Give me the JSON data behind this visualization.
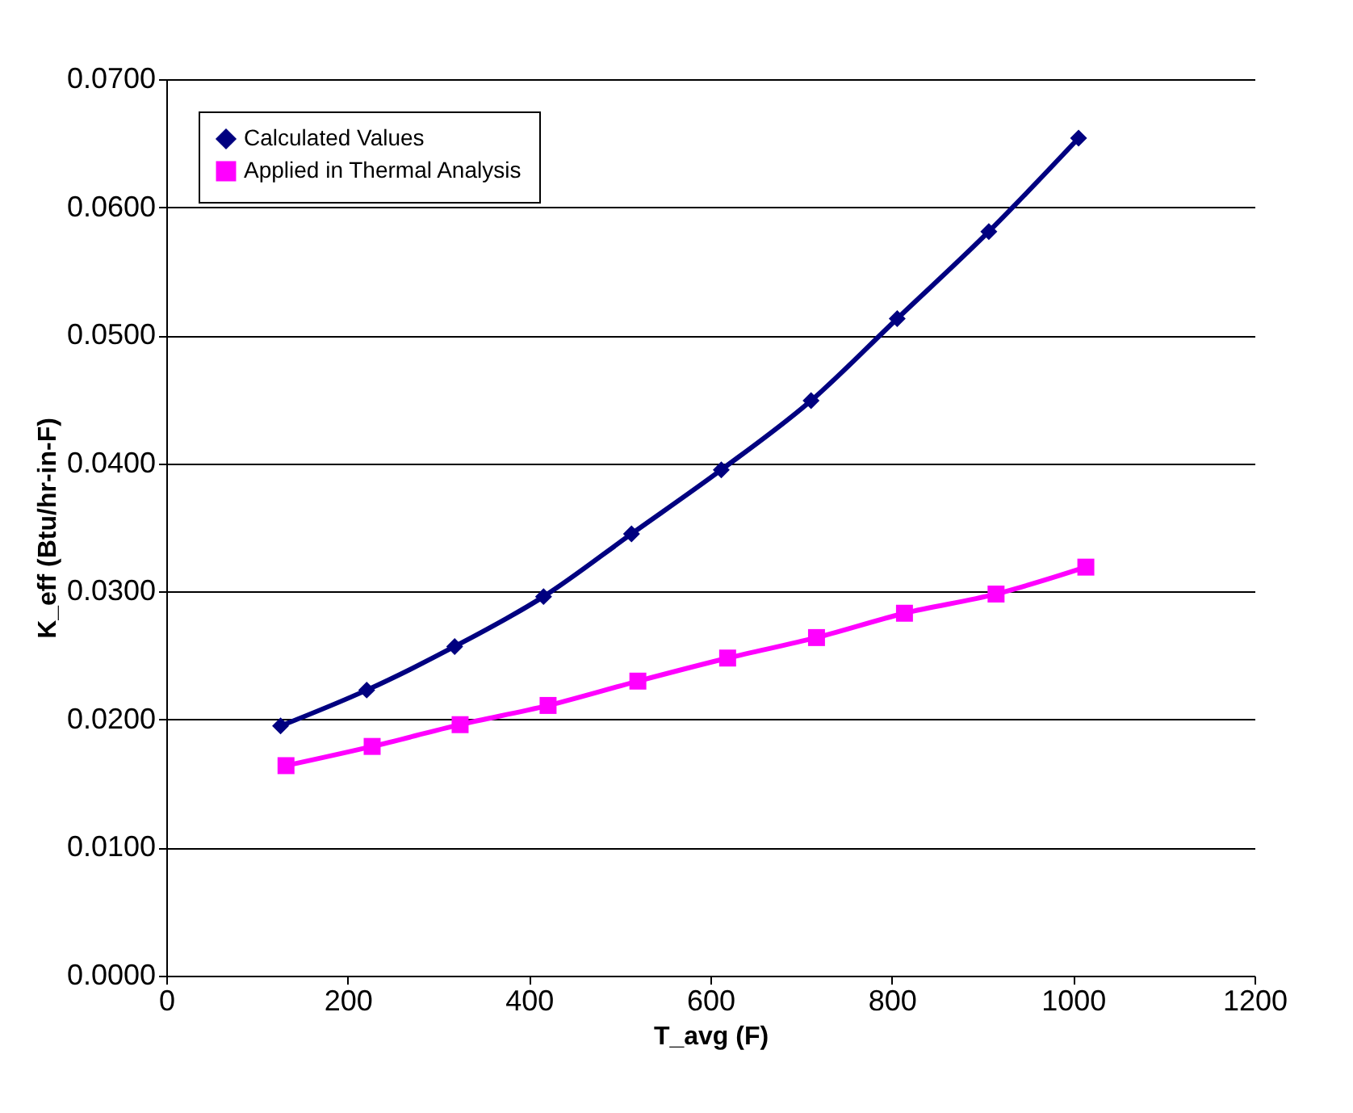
{
  "chart_data": {
    "type": "line",
    "xlabel": "T_avg (F)",
    "ylabel": "K_eff (Btu/hr-in-F)",
    "xlim": [
      0,
      1200
    ],
    "xticks": [
      0,
      200,
      400,
      600,
      800,
      1000,
      1200
    ],
    "ylim": [
      0,
      0.07
    ],
    "yticks": [
      {
        "value": 0,
        "label": "0.0000"
      },
      {
        "value": 0.01,
        "label": "0.0100"
      },
      {
        "value": 0.02,
        "label": "0.0200"
      },
      {
        "value": 0.03,
        "label": "0.0300"
      },
      {
        "value": 0.04,
        "label": "0.0400"
      },
      {
        "value": 0.05,
        "label": "0.0500"
      },
      {
        "value": 0.06,
        "label": "0.0600"
      },
      {
        "value": 0.07,
        "label": "0.0700"
      }
    ],
    "grid": "y",
    "legend": "top left",
    "series": [
      {
        "name": "Calculated Values",
        "color": "#000080",
        "marker": "diamond",
        "x": [
          126,
          221,
          318,
          416,
          513,
          612,
          711,
          806,
          907,
          1006
        ],
        "values": [
          0.0195,
          0.0223,
          0.0257,
          0.0296,
          0.0345,
          0.0395,
          0.0449,
          0.0513,
          0.0581,
          0.0654
        ]
      },
      {
        "name": "Applied in Thermal Analysis",
        "color": "#ff00ff",
        "marker": "square",
        "x": [
          132,
          227,
          324,
          421,
          520,
          619,
          717,
          814,
          915,
          1014
        ],
        "values": [
          0.0164,
          0.0179,
          0.0196,
          0.0211,
          0.023,
          0.0248,
          0.0264,
          0.0283,
          0.0298,
          0.0319
        ]
      }
    ]
  }
}
